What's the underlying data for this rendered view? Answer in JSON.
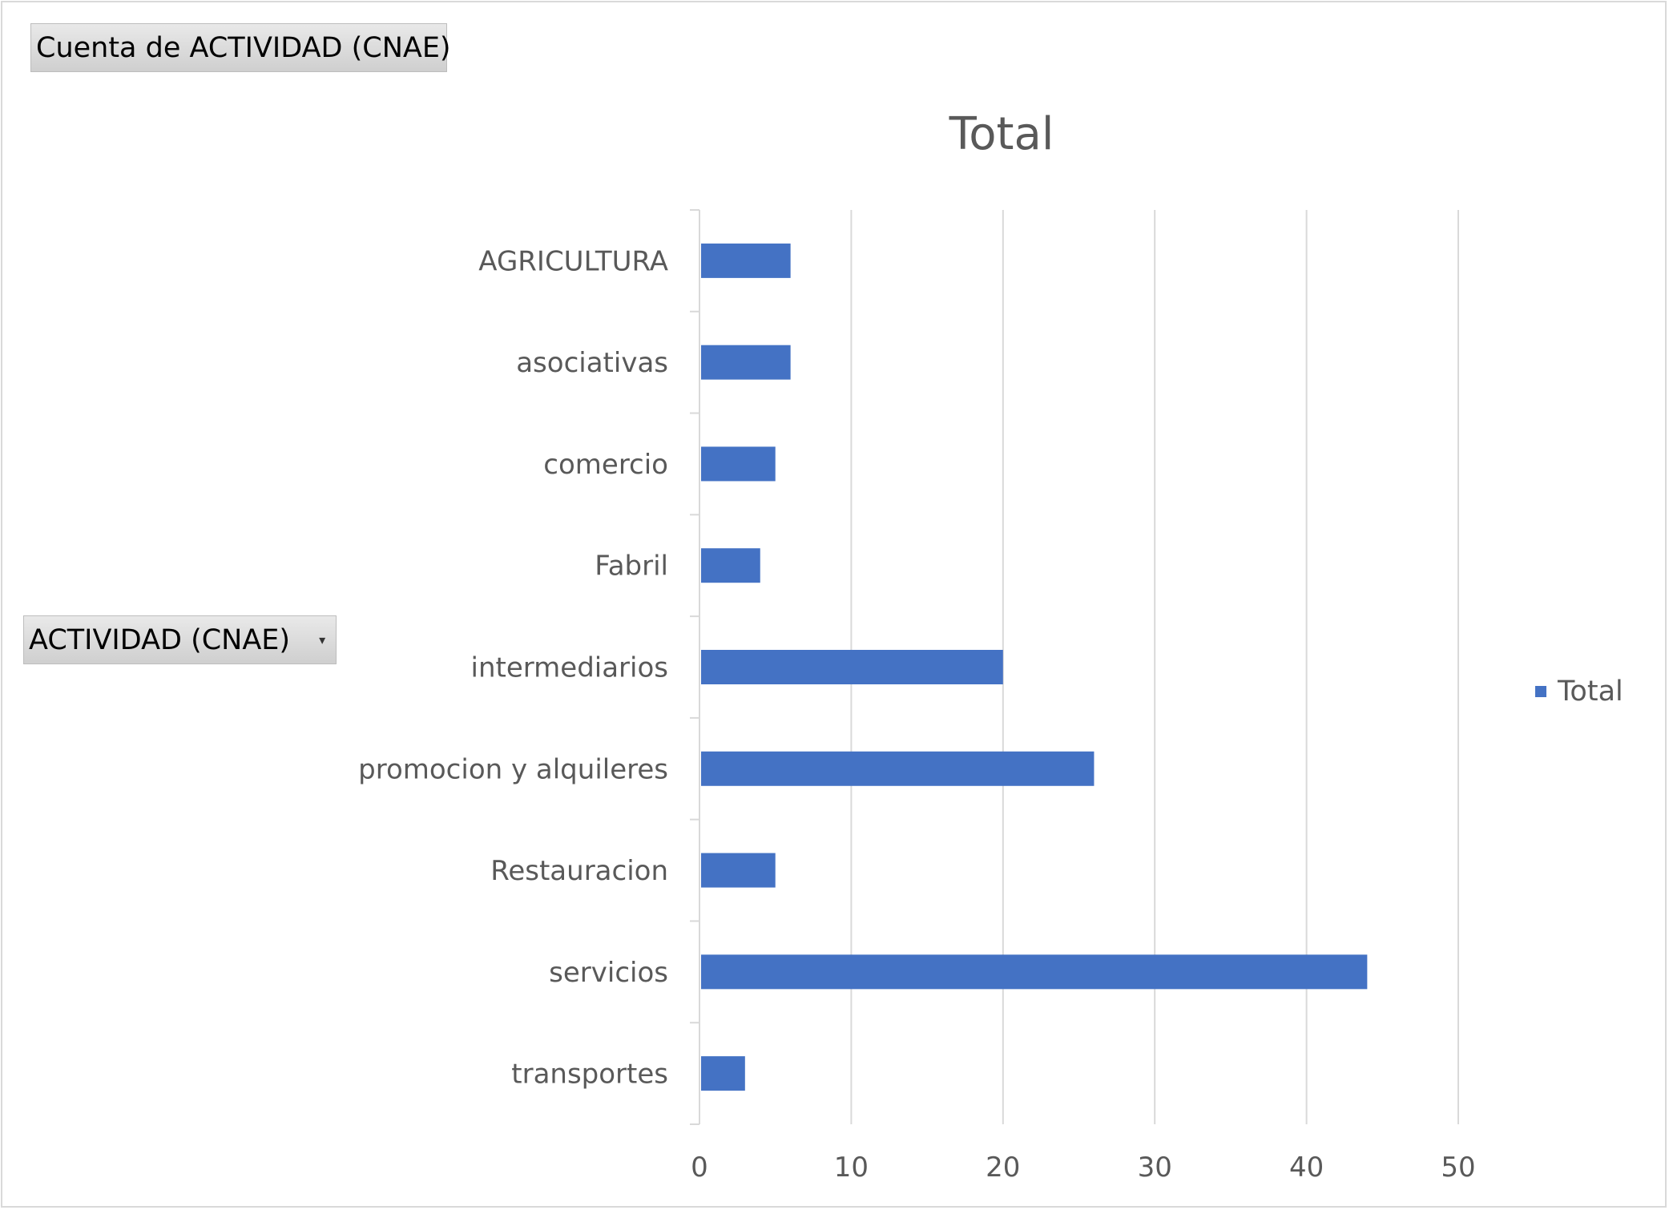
{
  "pivot": {
    "value_field": "Cuenta de ACTIVIDAD (CNAE)",
    "axis_field": "ACTIVIDAD (CNAE)",
    "dropdown_icon": "chevron-down-icon"
  },
  "chart_data": {
    "type": "bar",
    "orientation": "horizontal",
    "title": "Total",
    "categories": [
      "AGRICULTURA",
      "asociativas",
      "comercio",
      "Fabril",
      "intermediarios",
      "promocion y alquileres",
      "Restauracion",
      "servicios",
      "transportes"
    ],
    "series": [
      {
        "name": "Total",
        "values": [
          6,
          6,
          5,
          4,
          20,
          26,
          5,
          44,
          3
        ],
        "color": "#4472c4"
      }
    ],
    "xlim": [
      0,
      50
    ],
    "xticks": [
      "0",
      "10",
      "20",
      "30",
      "40",
      "50"
    ],
    "grid": true,
    "legend_position": "right"
  }
}
